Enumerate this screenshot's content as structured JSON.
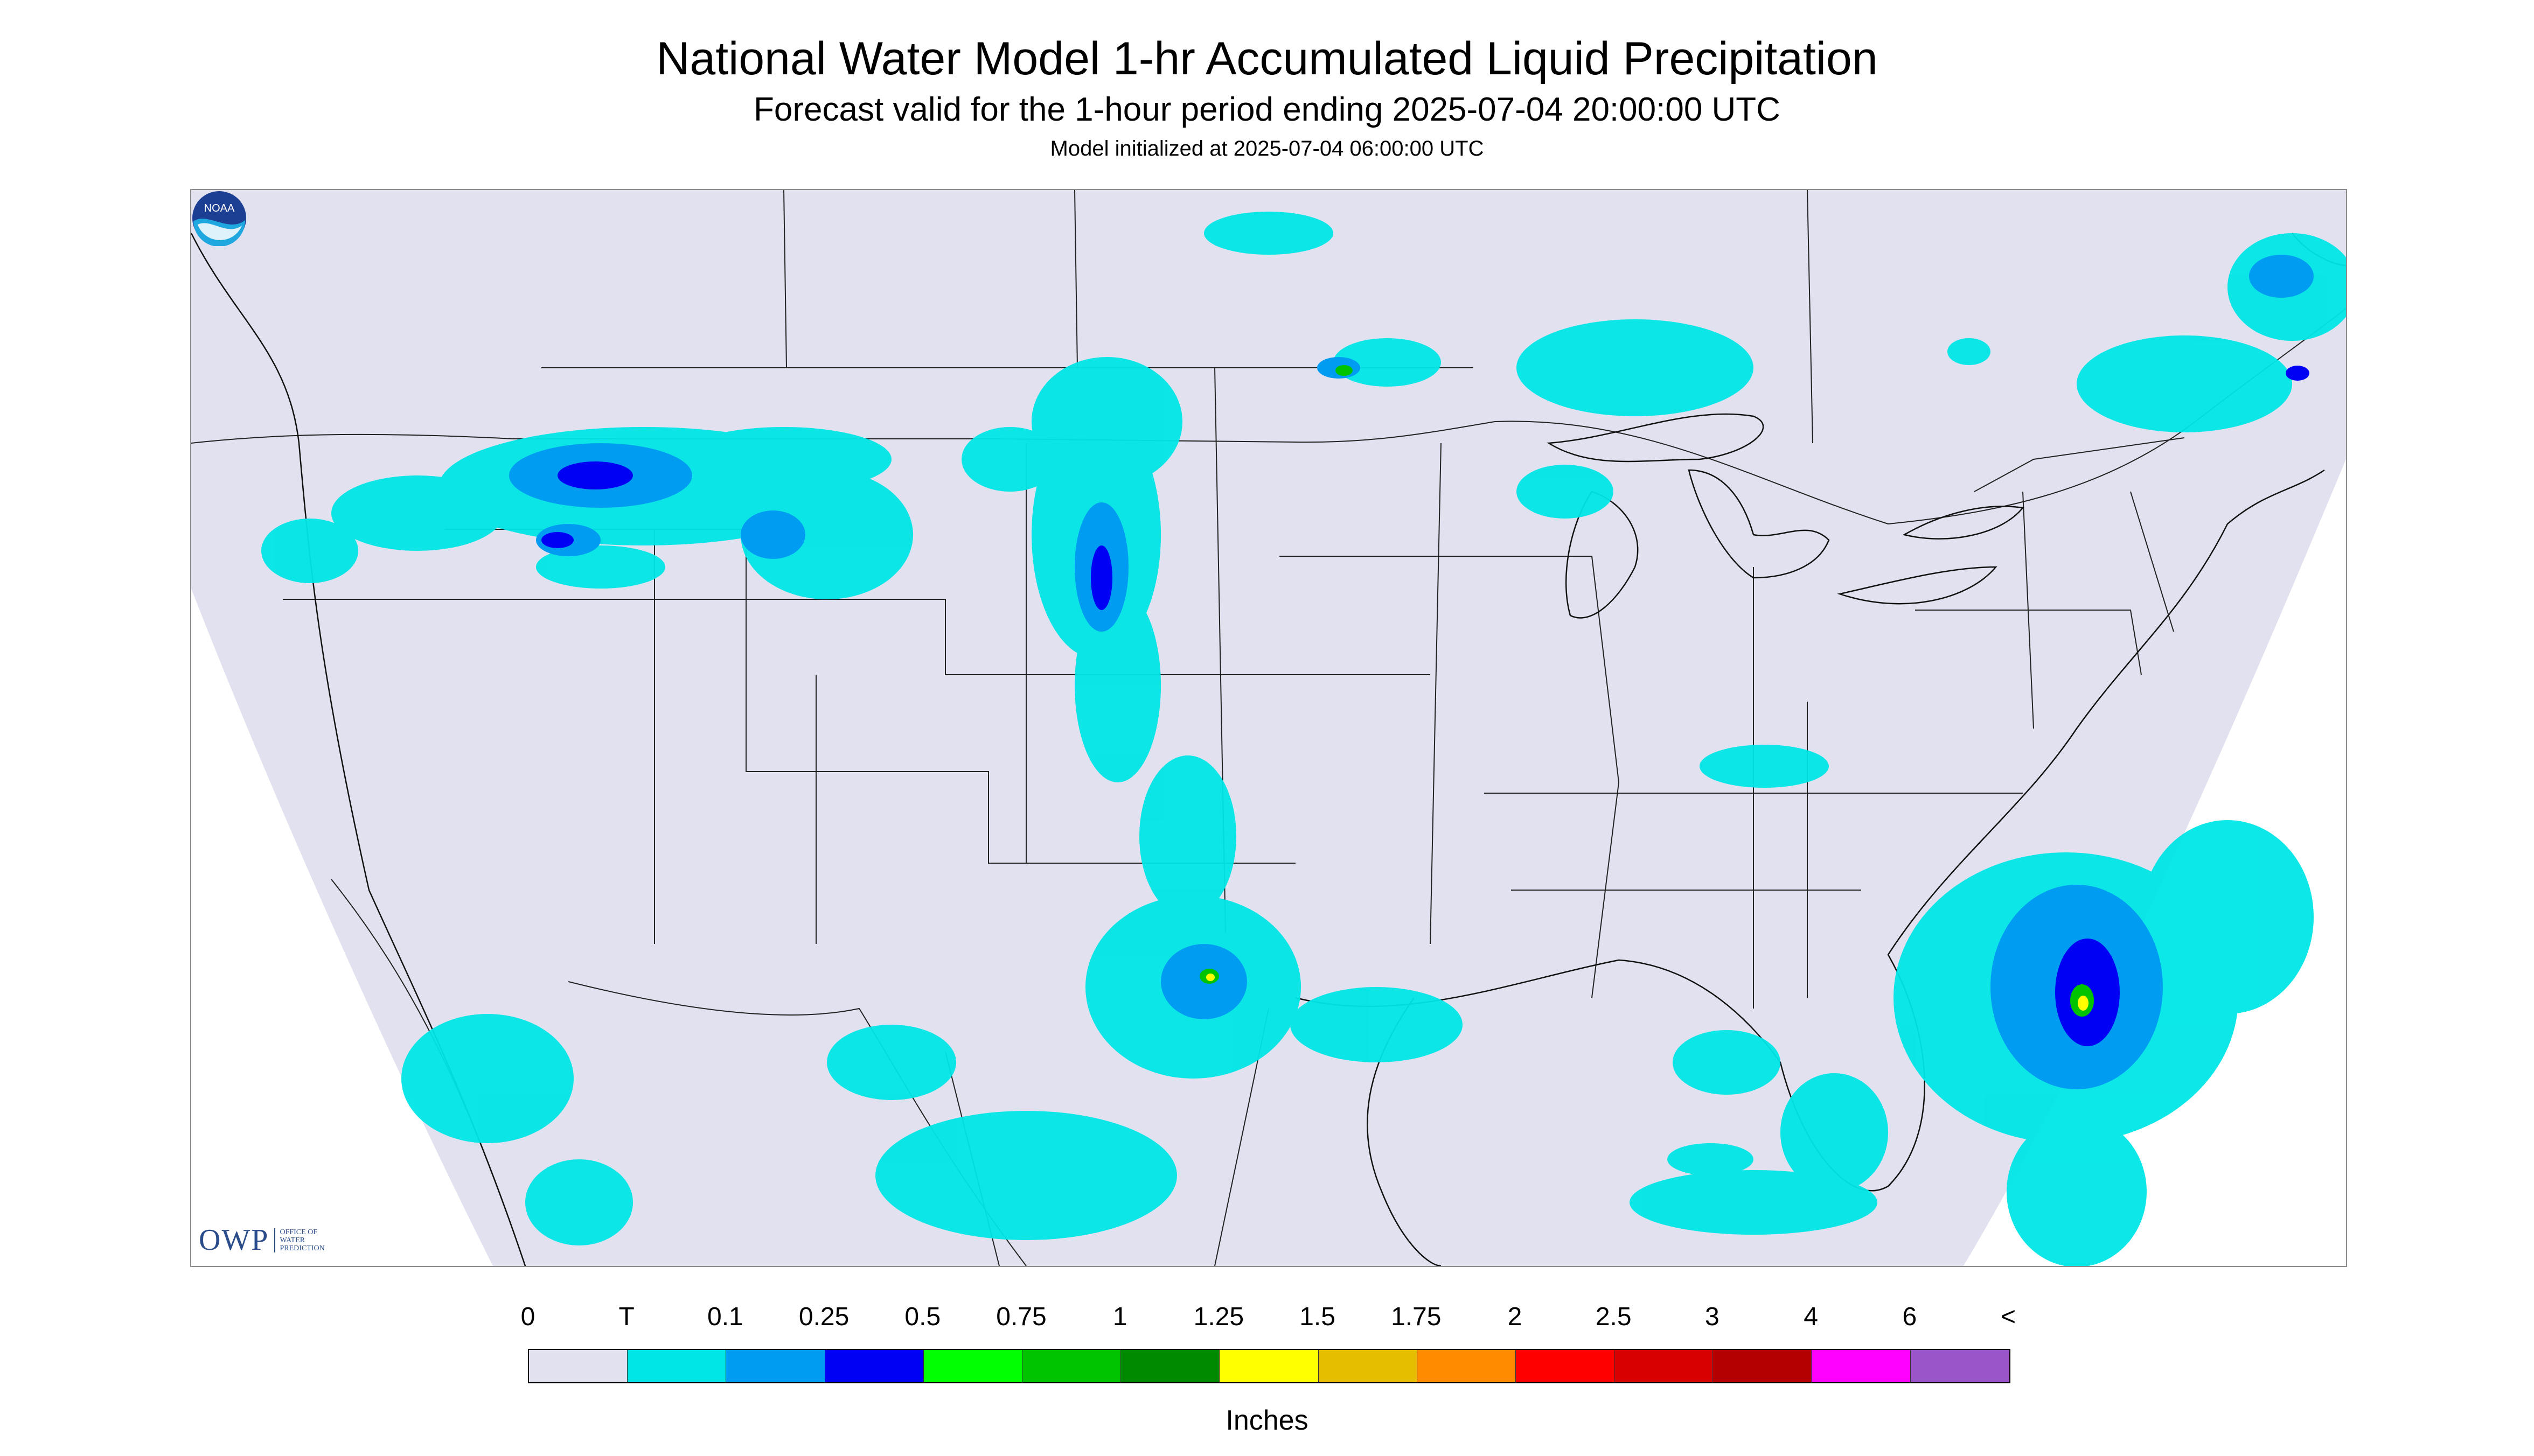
{
  "title": "National Water Model 1-hr Accumulated Liquid Precipitation",
  "subtitle": "Forecast valid for the 1-hour period ending 2025-07-04 20:00:00 UTC",
  "init_text": "Model initialized at 2025-07-04 06:00:00 UTC",
  "logos": {
    "owp_mark": "OWP",
    "owp_lines": [
      "OFFICE OF",
      "WATER",
      "PREDICTION"
    ],
    "noaa": "NOAA"
  },
  "legend": {
    "labels": [
      "0",
      "T",
      "0.1",
      "0.25",
      "0.5",
      "0.75",
      "1",
      "1.25",
      "1.5",
      "1.75",
      "2",
      "2.5",
      "3",
      "4",
      "6",
      "<"
    ],
    "colors": [
      "#e1e1ef",
      "#00e6e6",
      "#009cf2",
      "#0000f5",
      "#00ff00",
      "#00c300",
      "#008a00",
      "#ffff00",
      "#e6be00",
      "#ff8c00",
      "#ff0000",
      "#d80000",
      "#b40000",
      "#ff00ff",
      "#9a55c8"
    ],
    "units": "Inches"
  },
  "colors": {
    "outside_domain": "#ffffff",
    "no_precip": "#e1e1ef",
    "boundary": "#222222"
  }
}
